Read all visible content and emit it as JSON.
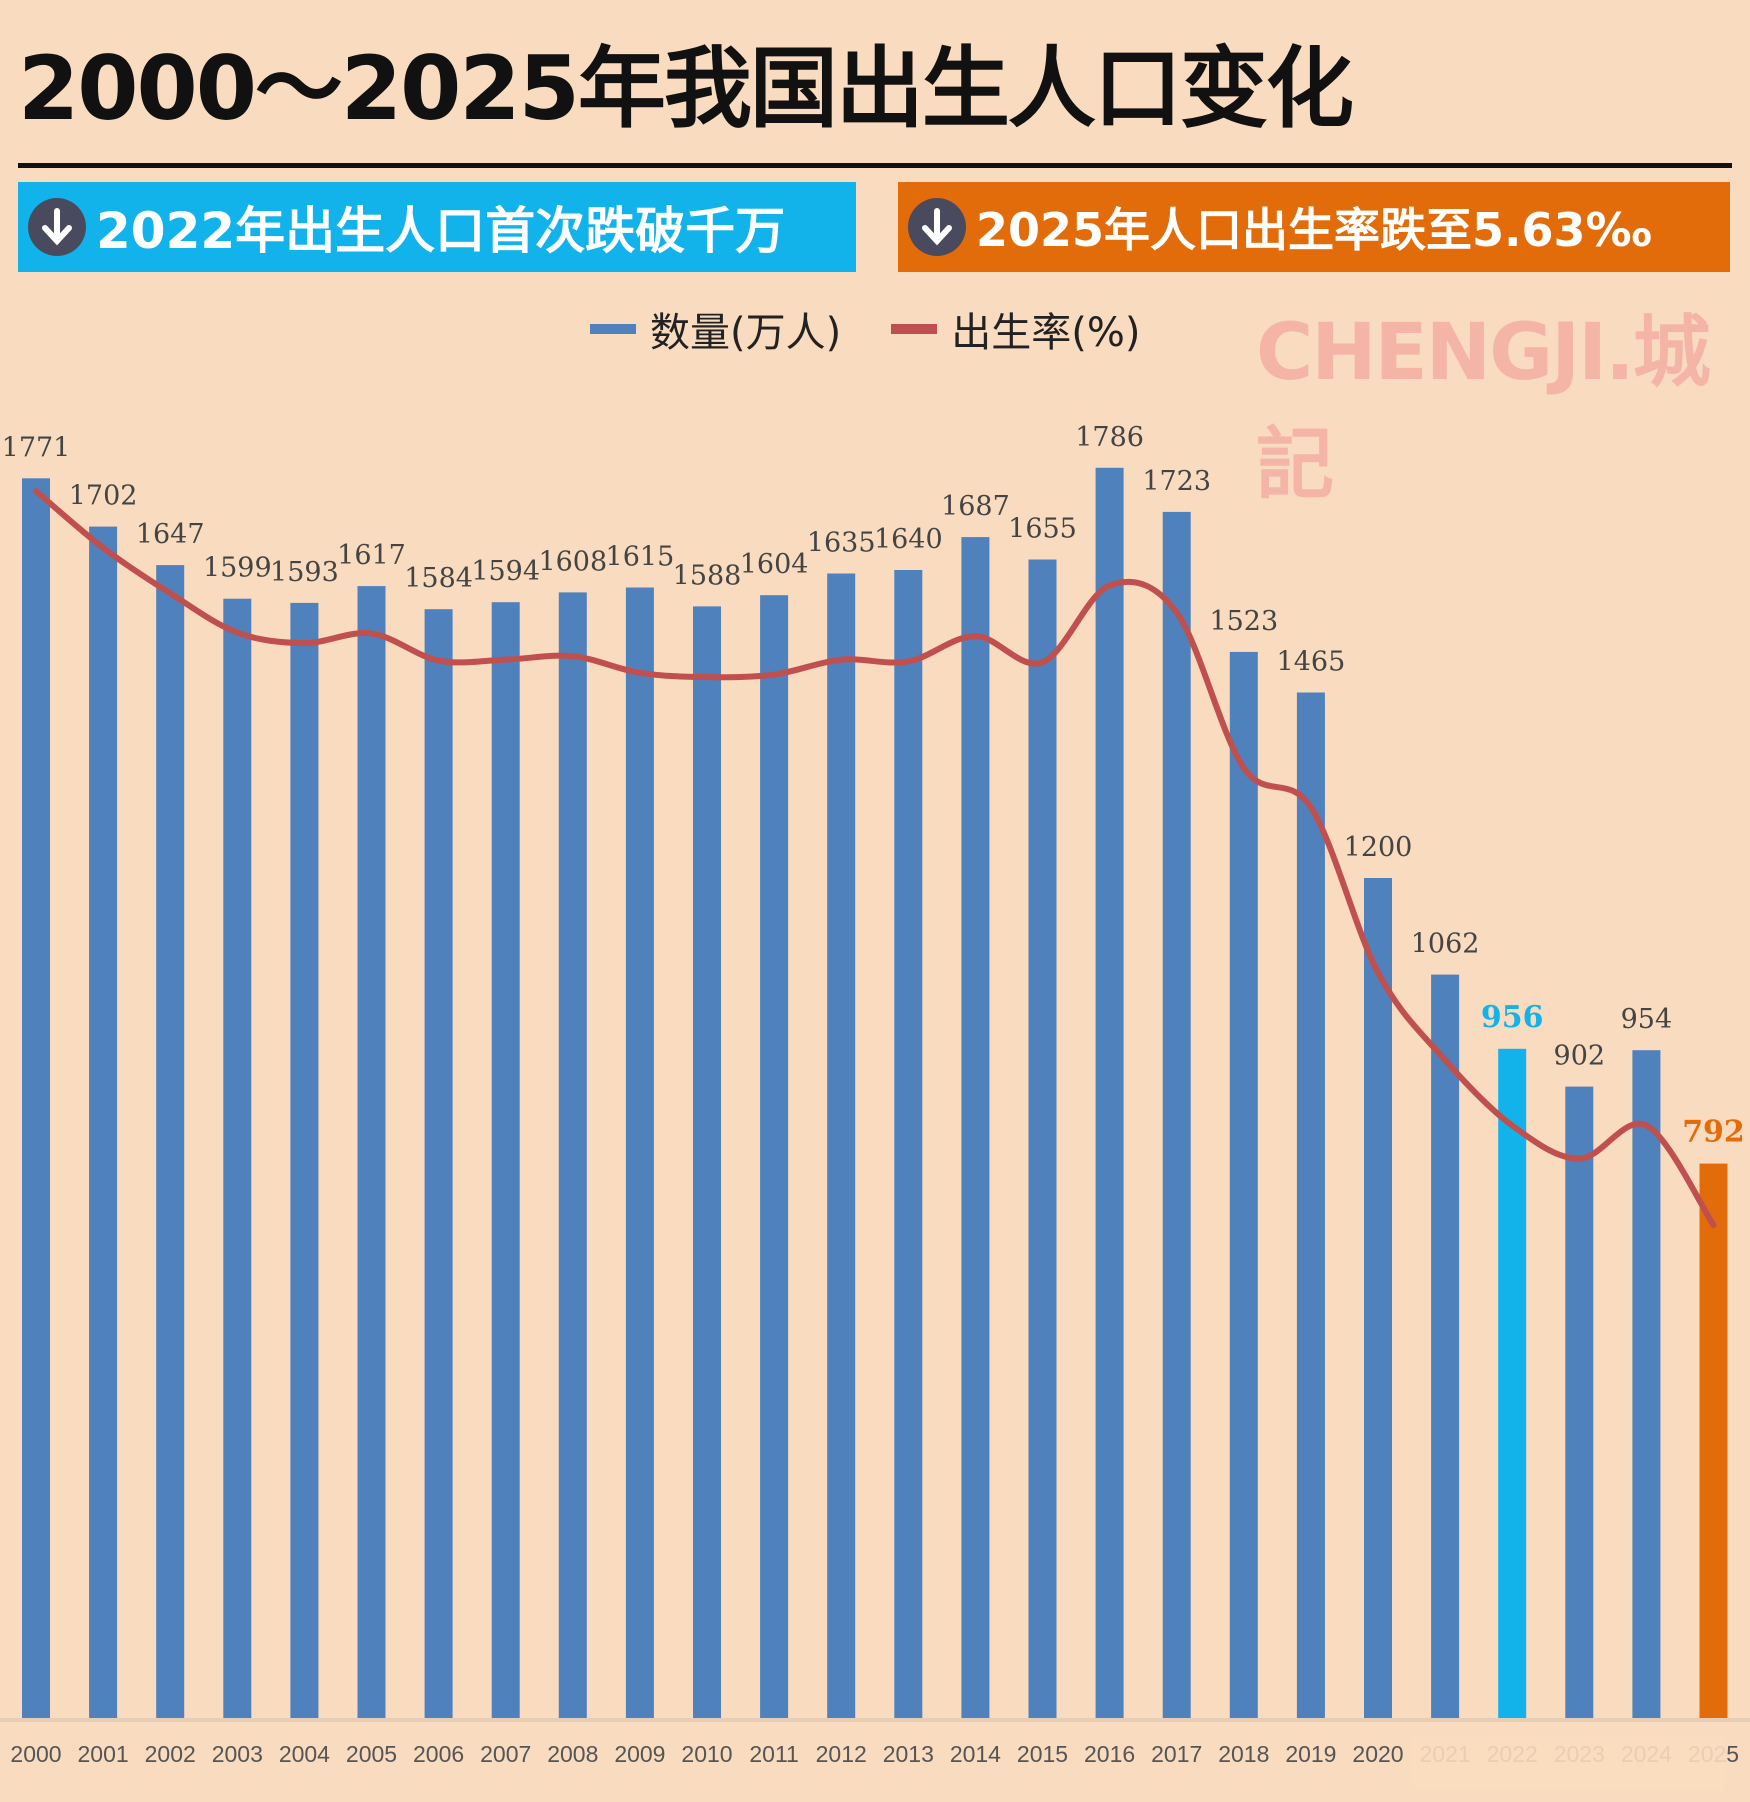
{
  "chart_data": {
    "type": "bar+line",
    "title": "2000～2025年我国出生人口变化",
    "categories": [
      "2000",
      "2001",
      "2002",
      "2003",
      "2004",
      "2005",
      "2006",
      "2007",
      "2008",
      "2009",
      "2010",
      "2011",
      "2012",
      "2013",
      "2014",
      "2015",
      "2016",
      "2017",
      "2018",
      "2019",
      "2020",
      "2021",
      "2022",
      "2023",
      "2024",
      "2025"
    ],
    "series": [
      {
        "name": "数量(万人)",
        "type": "bar",
        "color": "#4f81bd",
        "values": [
          1771,
          1702,
          1647,
          1599,
          1593,
          1617,
          1584,
          1594,
          1608,
          1615,
          1588,
          1604,
          1635,
          1640,
          1687,
          1655,
          1786,
          1723,
          1523,
          1465,
          1200,
          1062,
          956,
          902,
          954,
          792
        ],
        "highlight": {
          "2022": "#12b3eb",
          "2025": "#e36c0a"
        }
      },
      {
        "name": "出生率(%)",
        "type": "line",
        "color": "#c0504d",
        "values": [
          14.03,
          13.38,
          12.86,
          12.41,
          12.29,
          12.4,
          12.09,
          12.1,
          12.14,
          11.95,
          11.9,
          11.93,
          12.1,
          12.08,
          12.37,
          12.07,
          12.95,
          12.64,
          10.86,
          10.41,
          8.52,
          7.52,
          6.77,
          6.39,
          6.77,
          5.63
        ]
      }
    ],
    "legend_position": "top-center",
    "grid": false
  },
  "banners": {
    "left": "2022年出生人口首次跌破千万",
    "right": "2025年人口出生率跌至5.63‰",
    "left_color": "#12b3eb",
    "right_color": "#e36c0a",
    "icon": "arrow-down-circle-icon"
  },
  "watermark": "CHENGJI.城記"
}
